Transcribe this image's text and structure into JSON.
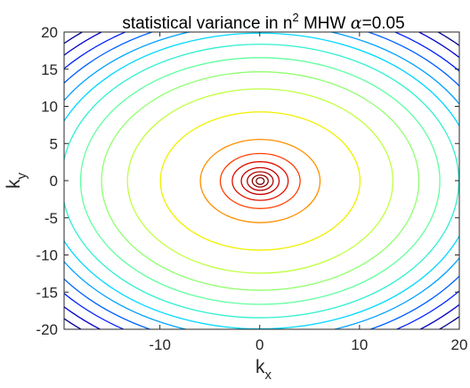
{
  "chart_data": {
    "type": "contour",
    "title": {
      "prefix": "statistical variance in n",
      "superscript": "2",
      "suffix": "  MHW ",
      "symbol": "α",
      "value": "=0.05"
    },
    "xlabel": {
      "base": "k",
      "subscript": "x"
    },
    "ylabel": {
      "base": "k",
      "subscript": "y"
    },
    "xlim": [
      -20,
      20
    ],
    "ylim": [
      -20,
      20
    ],
    "xticks": [
      -10,
      0,
      10,
      20
    ],
    "xtick_labels": [
      "-10",
      "0",
      "10",
      "20"
    ],
    "yticks": [
      20,
      15,
      10,
      5,
      0,
      -5,
      -10,
      -15,
      -20
    ],
    "ytick_labels": [
      "20",
      "15",
      "10",
      "5",
      "0",
      "-5",
      "-10",
      "-15",
      "-20"
    ],
    "grid": false,
    "colormap": "jet",
    "center": [
      0.05,
      -0.05
    ],
    "contours": [
      {
        "level": 1,
        "rx": 28.0,
        "ry": 26.0,
        "color": "#00008f"
      },
      {
        "level": 2,
        "rx": 26.8,
        "ry": 24.9,
        "color": "#0000c8"
      },
      {
        "level": 3,
        "rx": 25.6,
        "ry": 23.6,
        "color": "#0020ff"
      },
      {
        "level": 4,
        "rx": 24.3,
        "ry": 22.4,
        "color": "#0060ff"
      },
      {
        "level": 5,
        "rx": 22.9,
        "ry": 21.1,
        "color": "#00a0ff"
      },
      {
        "level": 6,
        "rx": 21.5,
        "ry": 19.9,
        "color": "#00d8ff"
      },
      {
        "level": 7,
        "rx": 19.9,
        "ry": 18.4,
        "color": "#30f0d0"
      },
      {
        "level": 8,
        "rx": 18.0,
        "ry": 16.6,
        "color": "#60ffa0"
      },
      {
        "level": 9,
        "rx": 15.9,
        "ry": 14.7,
        "color": "#90ff70"
      },
      {
        "level": 10,
        "rx": 13.3,
        "ry": 12.4,
        "color": "#c0ff40"
      },
      {
        "level": 11,
        "rx": 10.0,
        "ry": 9.3,
        "color": "#f0f000"
      },
      {
        "level": 12,
        "rx": 6.0,
        "ry": 5.6,
        "color": "#ff9000"
      },
      {
        "level": 13,
        "rx": 4.0,
        "ry": 3.7,
        "color": "#ff4000"
      },
      {
        "level": 14,
        "rx": 2.8,
        "ry": 2.6,
        "color": "#e01000"
      },
      {
        "level": 15,
        "rx": 1.9,
        "ry": 1.8,
        "color": "#c80000"
      },
      {
        "level": 16,
        "rx": 1.3,
        "ry": 1.25,
        "color": "#b00000"
      },
      {
        "level": 17,
        "rx": 0.8,
        "ry": 0.8,
        "color": "#900000"
      },
      {
        "level": 18,
        "rx": 0.4,
        "ry": 0.45,
        "color": "#700000"
      }
    ]
  }
}
